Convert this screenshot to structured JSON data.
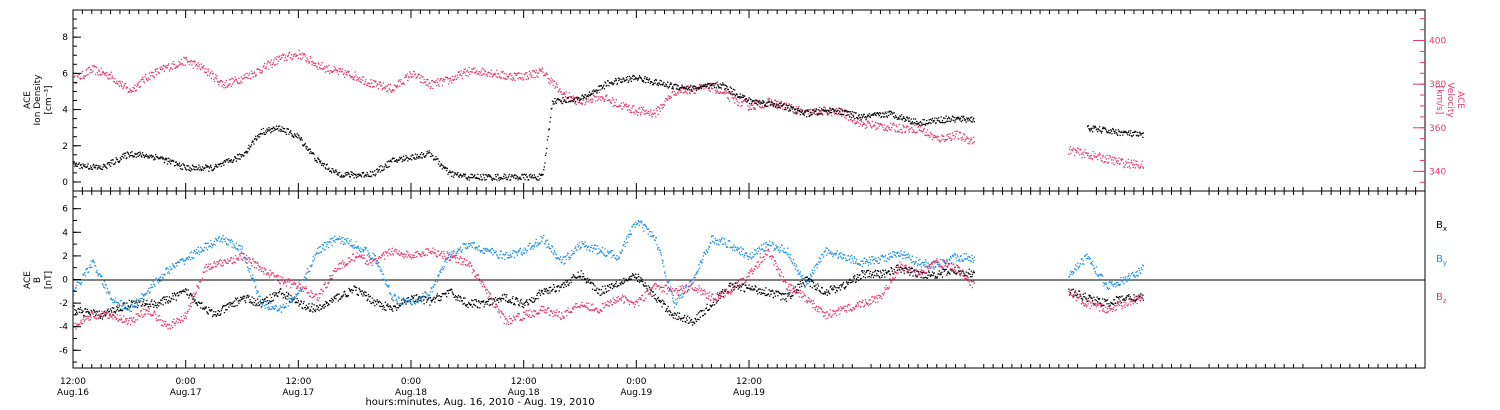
{
  "chart_data": [
    {
      "type": "scatter",
      "panel": "plasma",
      "ylabel_left": [
        "ACE",
        "Ion Density",
        "[cm⁻³]"
      ],
      "ylabel_right": [
        "ACE",
        "Velocity",
        "[km/s]"
      ],
      "y_left": {
        "ticks": [
          0,
          2,
          4,
          6,
          8
        ],
        "range": [
          -0.5,
          9.5
        ]
      },
      "y_right": {
        "ticks": [
          340,
          360,
          380,
          400
        ],
        "range": [
          331,
          414
        ]
      },
      "series": [
        {
          "axis": "left",
          "color": "#000000",
          "points": [
            [
              0,
              1.0
            ],
            [
              3,
              0.8
            ],
            [
              6,
              1.6
            ],
            [
              9,
              1.4
            ],
            [
              12,
              0.8
            ],
            [
              15,
              0.8
            ],
            [
              18,
              1.5
            ],
            [
              20,
              2.8
            ],
            [
              22,
              3.0
            ],
            [
              24,
              2.5
            ],
            [
              26,
              1.2
            ],
            [
              28,
              0.5
            ],
            [
              30,
              0.4
            ],
            [
              32,
              0.5
            ],
            [
              34,
              1.2
            ],
            [
              36,
              1.4
            ],
            [
              38,
              1.6
            ],
            [
              40,
              0.5
            ],
            [
              42,
              0.3
            ],
            [
              44,
              0.3
            ],
            [
              46,
              0.3
            ],
            [
              48,
              0.3
            ],
            [
              50,
              0.3
            ],
            [
              51,
              4.5
            ],
            [
              54,
              4.6
            ],
            [
              57,
              5.5
            ],
            [
              60,
              5.8
            ],
            [
              63,
              5.4
            ],
            [
              66,
              5.2
            ],
            [
              69,
              5.4
            ],
            [
              72,
              4.5
            ],
            [
              75,
              4.3
            ],
            [
              78,
              3.8
            ],
            [
              81,
              4.0
            ],
            [
              84,
              3.6
            ],
            [
              87,
              3.8
            ],
            [
              90,
              3.3
            ],
            [
              93,
              3.5
            ],
            [
              96,
              3.5
            ],
            [
              108,
              3.0
            ],
            [
              111,
              2.8
            ],
            [
              114,
              2.6
            ]
          ]
        },
        {
          "axis": "right",
          "color": "#e23a6c",
          "points": [
            [
              0,
              382
            ],
            [
              2,
              387
            ],
            [
              4,
              384
            ],
            [
              6,
              377
            ],
            [
              8,
              384
            ],
            [
              10,
              388
            ],
            [
              12,
              391
            ],
            [
              14,
              387
            ],
            [
              16,
              380
            ],
            [
              18,
              383
            ],
            [
              20,
              387
            ],
            [
              22,
              392
            ],
            [
              24,
              394
            ],
            [
              26,
              389
            ],
            [
              28,
              386
            ],
            [
              30,
              384
            ],
            [
              32,
              380
            ],
            [
              34,
              378
            ],
            [
              36,
              385
            ],
            [
              38,
              380
            ],
            [
              40,
              382
            ],
            [
              42,
              386
            ],
            [
              44,
              386
            ],
            [
              46,
              384
            ],
            [
              48,
              384
            ],
            [
              50,
              386
            ],
            [
              52,
              376
            ],
            [
              54,
              372
            ],
            [
              56,
              375
            ],
            [
              58,
              371
            ],
            [
              60,
              368
            ],
            [
              62,
              367
            ],
            [
              64,
              377
            ],
            [
              66,
              378
            ],
            [
              68,
              379
            ],
            [
              70,
              374
            ],
            [
              72,
              370
            ],
            [
              74,
              372
            ],
            [
              76,
              370
            ],
            [
              78,
              367
            ],
            [
              80,
              368
            ],
            [
              82,
              367
            ],
            [
              84,
              362
            ],
            [
              86,
              361
            ],
            [
              88,
              360
            ],
            [
              90,
              360
            ],
            [
              92,
              355
            ],
            [
              94,
              357
            ],
            [
              96,
              354
            ],
            [
              106,
              350
            ],
            [
              108,
              348
            ],
            [
              110,
              346
            ],
            [
              112,
              344
            ],
            [
              114,
              343
            ]
          ]
        }
      ]
    },
    {
      "type": "scatter",
      "panel": "magnetic field",
      "ylabel_left": [
        "ACE",
        "B",
        "[nT]"
      ],
      "y_left": {
        "ticks": [
          -6,
          -4,
          -2,
          0,
          2,
          4,
          6
        ],
        "range": [
          -7.5,
          7.5
        ]
      },
      "legend": [
        {
          "label": "Bₓ",
          "color": "#000000"
        },
        {
          "label": "B_y",
          "color": "#1e90e0"
        },
        {
          "label": "B_z",
          "color": "#e23a6c"
        }
      ],
      "series": [
        {
          "name": "Bₓ",
          "color": "#000000",
          "points": [
            [
              0,
              -2.5
            ],
            [
              3,
              -3.0
            ],
            [
              6,
              -2.0
            ],
            [
              9,
              -2.0
            ],
            [
              12,
              -1.0
            ],
            [
              15,
              -3.0
            ],
            [
              18,
              -1.5
            ],
            [
              20,
              -2.0
            ],
            [
              22,
              -1.0
            ],
            [
              24,
              -2.0
            ],
            [
              26,
              -2.5
            ],
            [
              28,
              -1.5
            ],
            [
              30,
              -0.8
            ],
            [
              32,
              -1.8
            ],
            [
              34,
              -2.5
            ],
            [
              36,
              -1.5
            ],
            [
              38,
              -1.8
            ],
            [
              40,
              -1.0
            ],
            [
              42,
              -2.0
            ],
            [
              44,
              -2.0
            ],
            [
              46,
              -1.5
            ],
            [
              48,
              -2.0
            ],
            [
              50,
              -1.0
            ],
            [
              52,
              -0.5
            ],
            [
              54,
              0.5
            ],
            [
              56,
              -1.0
            ],
            [
              58,
              -0.2
            ],
            [
              60,
              0.3
            ],
            [
              62,
              -1.5
            ],
            [
              64,
              -3.0
            ],
            [
              66,
              -3.5
            ],
            [
              68,
              -2.0
            ],
            [
              70,
              -0.5
            ],
            [
              72,
              -0.7
            ],
            [
              74,
              -1.0
            ],
            [
              76,
              -1.5
            ],
            [
              78,
              0.0
            ],
            [
              80,
              -1.0
            ],
            [
              82,
              -0.5
            ],
            [
              84,
              0.5
            ],
            [
              86,
              0.5
            ],
            [
              88,
              1.0
            ],
            [
              90,
              0.5
            ],
            [
              92,
              0.5
            ],
            [
              94,
              0.8
            ],
            [
              96,
              0.5
            ],
            [
              106,
              -1.0
            ],
            [
              108,
              -1.5
            ],
            [
              110,
              -2.0
            ],
            [
              112,
              -1.5
            ],
            [
              114,
              -1.5
            ]
          ]
        },
        {
          "name": "B_y",
          "color": "#1e90e0",
          "points": [
            [
              0,
              -1.0
            ],
            [
              2,
              1.5
            ],
            [
              4,
              -1.5
            ],
            [
              6,
              -2.5
            ],
            [
              8,
              -0.8
            ],
            [
              10,
              0.8
            ],
            [
              12,
              1.8
            ],
            [
              14,
              2.8
            ],
            [
              16,
              3.5
            ],
            [
              18,
              2.5
            ],
            [
              20,
              -2.0
            ],
            [
              22,
              -2.5
            ],
            [
              24,
              -1.0
            ],
            [
              26,
              2.5
            ],
            [
              28,
              3.5
            ],
            [
              30,
              3.0
            ],
            [
              32,
              2.0
            ],
            [
              34,
              -1.5
            ],
            [
              36,
              -2.0
            ],
            [
              38,
              -1.0
            ],
            [
              40,
              2.0
            ],
            [
              42,
              3.0
            ],
            [
              44,
              2.5
            ],
            [
              46,
              2.0
            ],
            [
              48,
              2.5
            ],
            [
              50,
              3.5
            ],
            [
              52,
              1.5
            ],
            [
              54,
              3.0
            ],
            [
              56,
              2.5
            ],
            [
              58,
              2.0
            ],
            [
              60,
              5.0
            ],
            [
              62,
              3.5
            ],
            [
              64,
              -2.0
            ],
            [
              66,
              0.0
            ],
            [
              68,
              3.5
            ],
            [
              70,
              3.0
            ],
            [
              72,
              2.0
            ],
            [
              74,
              3.0
            ],
            [
              76,
              2.5
            ],
            [
              78,
              -0.5
            ],
            [
              80,
              2.5
            ],
            [
              82,
              2.0
            ],
            [
              84,
              1.5
            ],
            [
              86,
              1.8
            ],
            [
              88,
              2.2
            ],
            [
              90,
              1.5
            ],
            [
              92,
              1.2
            ],
            [
              94,
              2.0
            ],
            [
              96,
              1.8
            ],
            [
              106,
              0.5
            ],
            [
              108,
              2.0
            ],
            [
              110,
              -0.5
            ],
            [
              112,
              0.0
            ],
            [
              114,
              1.0
            ]
          ]
        },
        {
          "name": "B_z",
          "color": "#e23a6c",
          "points": [
            [
              0,
              -4.0
            ],
            [
              2,
              -3.0
            ],
            [
              4,
              -3.0
            ],
            [
              6,
              -3.5
            ],
            [
              8,
              -2.5
            ],
            [
              10,
              -4.0
            ],
            [
              12,
              -3.0
            ],
            [
              14,
              1.0
            ],
            [
              16,
              1.5
            ],
            [
              18,
              2.0
            ],
            [
              20,
              1.0
            ],
            [
              22,
              0.0
            ],
            [
              24,
              -0.5
            ],
            [
              26,
              -1.5
            ],
            [
              28,
              1.0
            ],
            [
              30,
              2.0
            ],
            [
              32,
              1.5
            ],
            [
              34,
              2.5
            ],
            [
              36,
              2.0
            ],
            [
              38,
              2.5
            ],
            [
              40,
              2.0
            ],
            [
              42,
              1.5
            ],
            [
              44,
              -1.0
            ],
            [
              46,
              -3.5
            ],
            [
              48,
              -3.0
            ],
            [
              50,
              -2.5
            ],
            [
              52,
              -3.0
            ],
            [
              54,
              -2.0
            ],
            [
              56,
              -2.5
            ],
            [
              58,
              -1.5
            ],
            [
              60,
              -2.0
            ],
            [
              62,
              -0.5
            ],
            [
              64,
              -1.0
            ],
            [
              66,
              -0.5
            ],
            [
              68,
              -1.5
            ],
            [
              70,
              -1.0
            ],
            [
              72,
              0.5
            ],
            [
              74,
              2.5
            ],
            [
              76,
              -0.5
            ],
            [
              78,
              -1.5
            ],
            [
              80,
              -3.0
            ],
            [
              82,
              -2.5
            ],
            [
              84,
              -2.0
            ],
            [
              86,
              -1.5
            ],
            [
              88,
              1.2
            ],
            [
              90,
              0.5
            ],
            [
              92,
              1.5
            ],
            [
              94,
              1.0
            ],
            [
              96,
              -0.5
            ],
            [
              106,
              -1.0
            ],
            [
              108,
              -2.0
            ],
            [
              110,
              -2.5
            ],
            [
              112,
              -2.0
            ],
            [
              114,
              -1.5
            ]
          ]
        }
      ]
    }
  ],
  "x_axis": {
    "unit": "hours since start",
    "range": [
      0,
      144
    ],
    "ticks": [
      {
        "h": 0,
        "time": "12:00",
        "date": "Aug.16"
      },
      {
        "h": 12,
        "time": "0:00",
        "date": "Aug.17"
      },
      {
        "h": 24,
        "time": "12:00",
        "date": "Aug.17"
      },
      {
        "h": 36,
        "time": "0:00",
        "date": "Aug.18"
      },
      {
        "h": 48,
        "time": "12:00",
        "date": "Aug.18"
      },
      {
        "h": 60,
        "time": "0:00",
        "date": "Aug.19"
      },
      {
        "h": 72,
        "time": "12:00",
        "date": "Aug.19"
      }
    ],
    "label": "hours:minutes, Aug. 16, 2010 - Aug. 19, 2010"
  },
  "legend_labels": {
    "bx": "B",
    "bx_sub": "x",
    "by": "B",
    "by_sub": "y",
    "bz": "B",
    "bz_sub": "z"
  }
}
